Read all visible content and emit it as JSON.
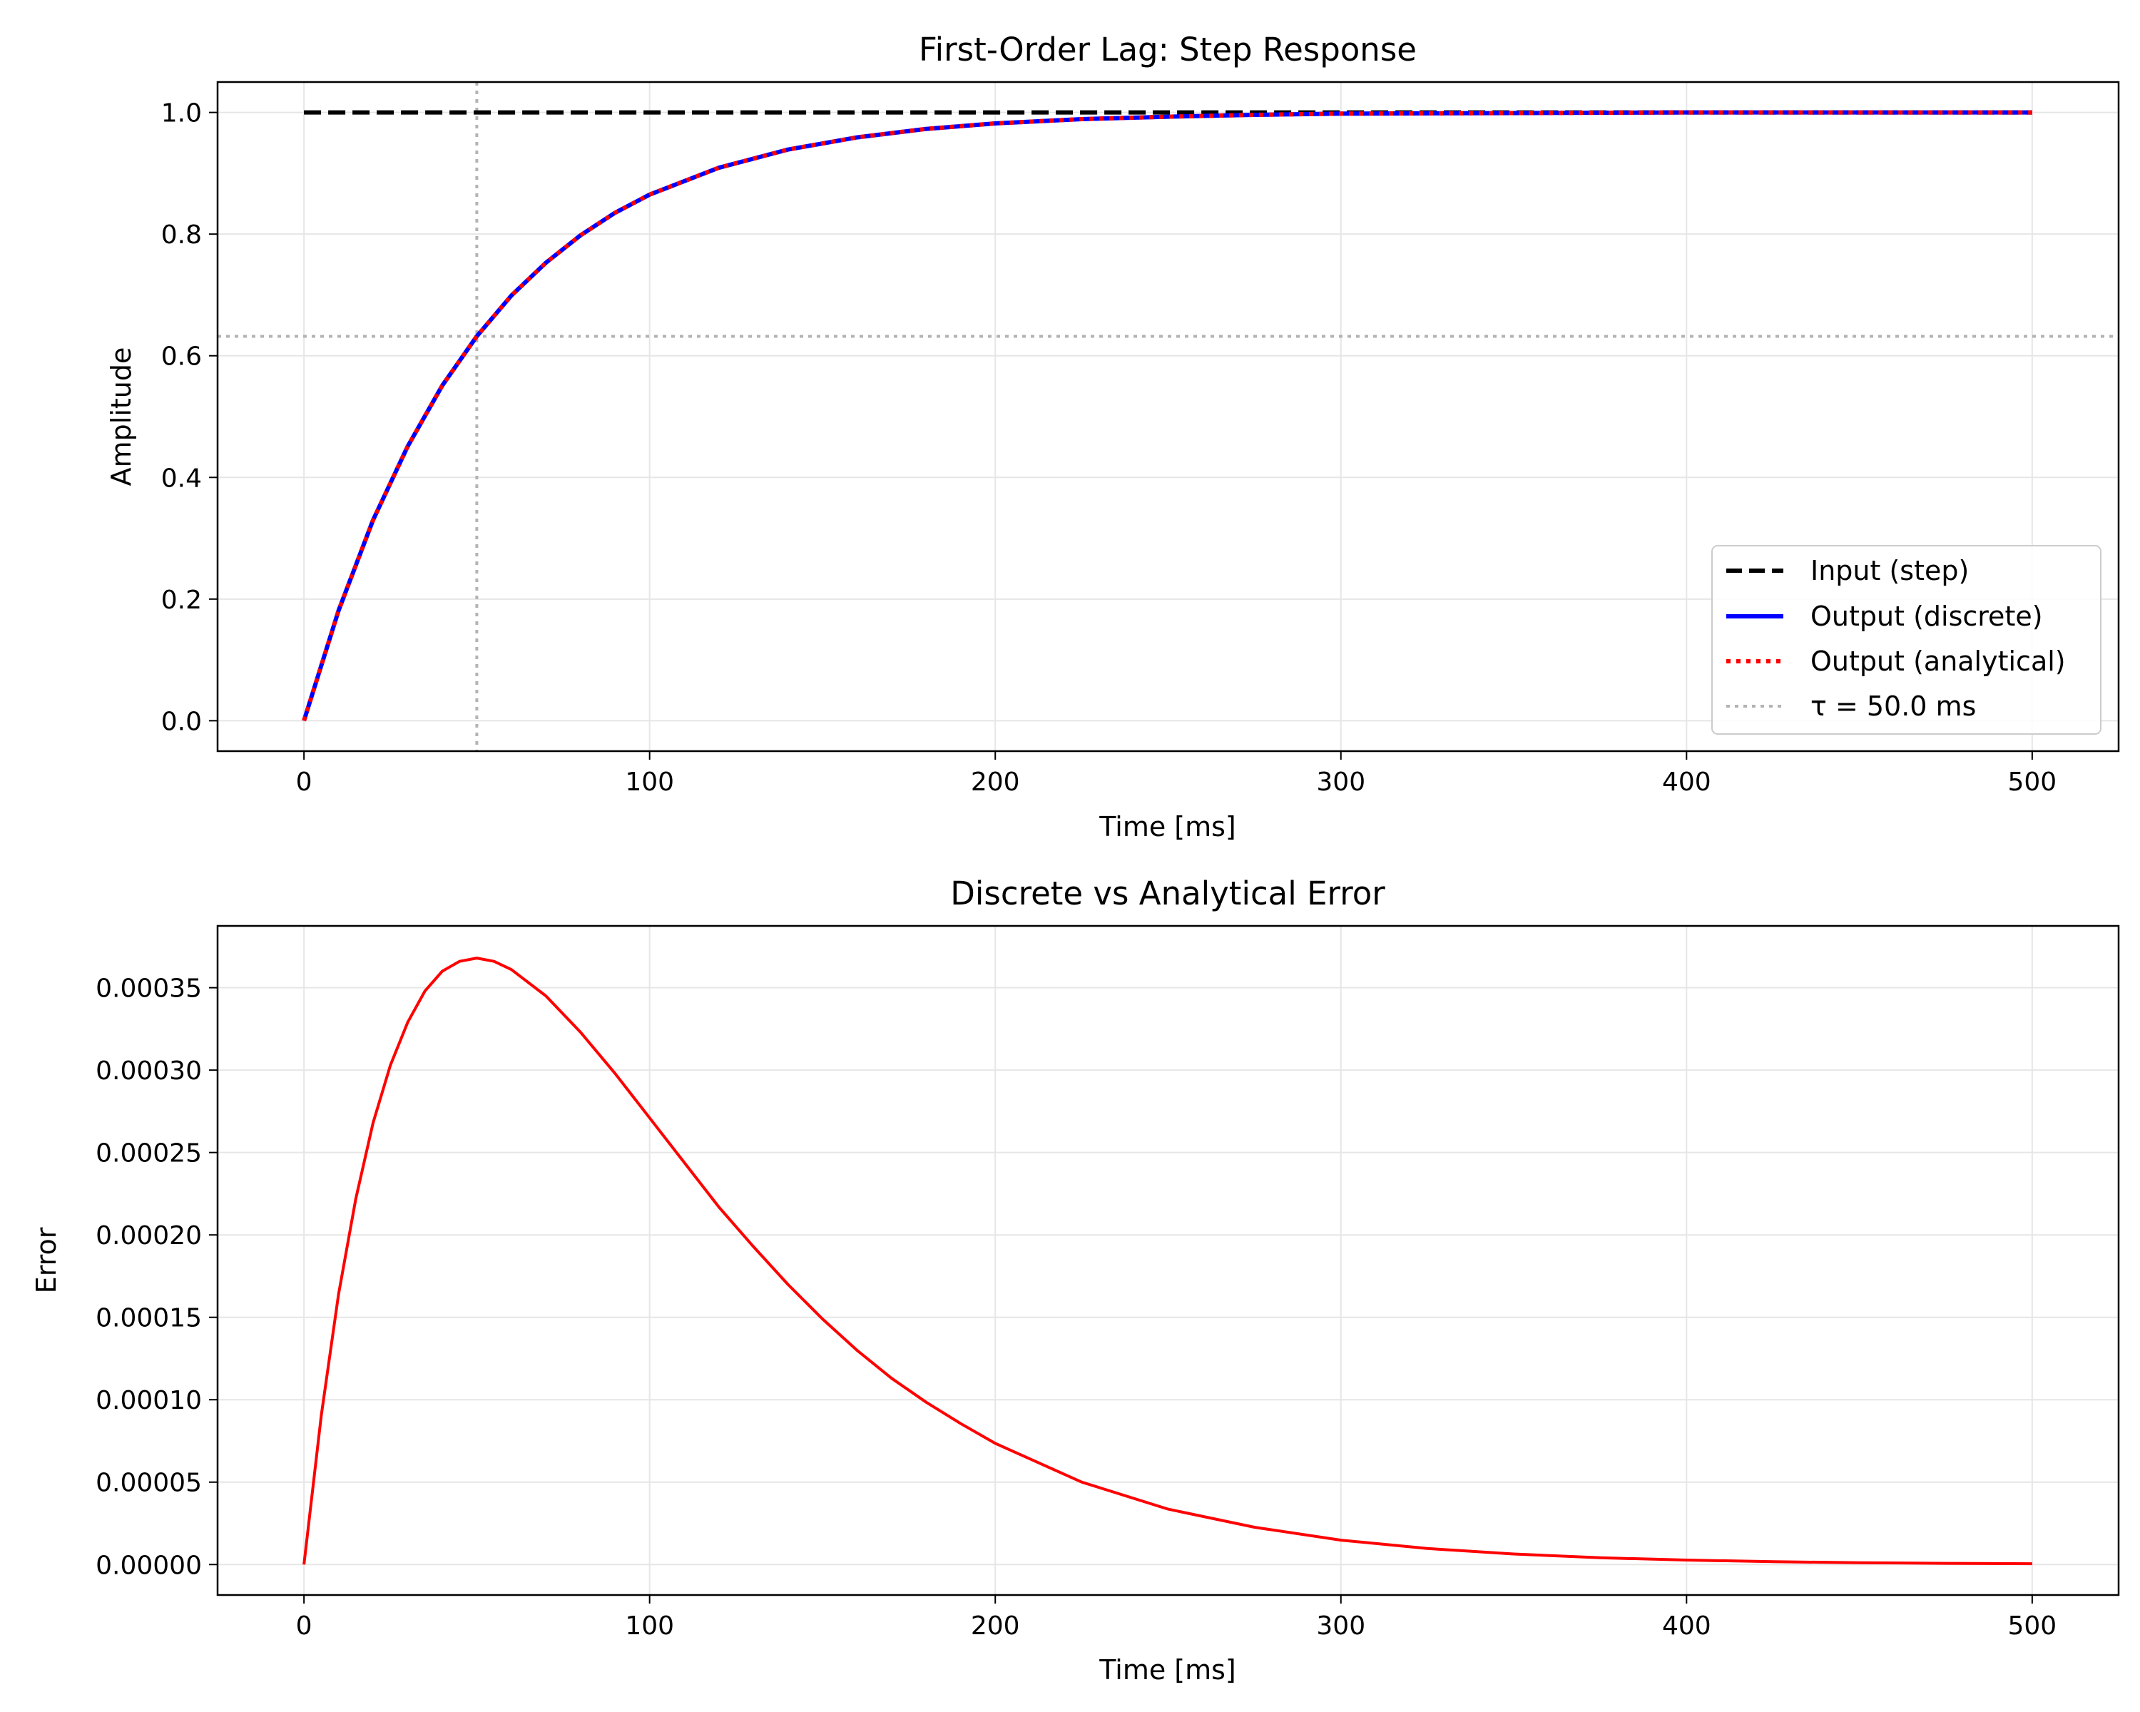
{
  "chart_data": [
    {
      "type": "line",
      "title": "First-Order Lag: Step Response",
      "xlabel": "Time [ms]",
      "ylabel": "Amplitude",
      "xlim": [
        -25,
        525
      ],
      "ylim": [
        -0.05,
        1.05
      ],
      "xticks": [
        0,
        100,
        200,
        300,
        400,
        500
      ],
      "xtick_labels": [
        "0",
        "100",
        "200",
        "300",
        "400",
        "500"
      ],
      "yticks": [
        0.0,
        0.2,
        0.4,
        0.6,
        0.8,
        1.0
      ],
      "ytick_labels": [
        "0.0",
        "0.2",
        "0.4",
        "0.6",
        "0.8",
        "1.0"
      ],
      "grid": true,
      "legend_position": "lower-right",
      "x": [
        0,
        10,
        20,
        30,
        40,
        50,
        60,
        70,
        80,
        90,
        100,
        120,
        140,
        160,
        180,
        200,
        225,
        250,
        275,
        300,
        350,
        400,
        450,
        500
      ],
      "series": [
        {
          "name": "Input (step)",
          "color": "#000000",
          "style": "dashed",
          "values": [
            1,
            1,
            1,
            1,
            1,
            1,
            1,
            1,
            1,
            1,
            1,
            1,
            1,
            1,
            1,
            1,
            1,
            1,
            1,
            1,
            1,
            1,
            1,
            1
          ]
        },
        {
          "name": "Output (discrete)",
          "color": "#0000ff",
          "style": "solid",
          "values": [
            0.0,
            0.181,
            0.33,
            0.451,
            0.551,
            0.632,
            0.699,
            0.753,
            0.798,
            0.835,
            0.865,
            0.909,
            0.939,
            0.959,
            0.973,
            0.982,
            0.989,
            0.993,
            0.996,
            0.998,
            0.999,
            1.0,
            1.0,
            1.0
          ]
        },
        {
          "name": "Output (analytical)",
          "color": "#ff0000",
          "style": "dotted",
          "values": [
            0.0,
            0.181,
            0.33,
            0.451,
            0.551,
            0.632,
            0.699,
            0.753,
            0.798,
            0.835,
            0.865,
            0.909,
            0.939,
            0.959,
            0.973,
            0.982,
            0.989,
            0.993,
            0.996,
            0.998,
            0.999,
            1.0,
            1.0,
            1.0
          ]
        }
      ],
      "reference_lines": {
        "name": "τ = 50.0 ms",
        "color": "#b3b3b3",
        "vertical_x": 50,
        "horizontal_y": 0.632
      }
    },
    {
      "type": "line",
      "title": "Discrete vs Analytical Error",
      "xlabel": "Time [ms]",
      "ylabel": "Error",
      "xlim": [
        -25,
        525
      ],
      "ylim": [
        -1.85e-05,
        0.0003875
      ],
      "xticks": [
        0,
        100,
        200,
        300,
        400,
        500
      ],
      "xtick_labels": [
        "0",
        "100",
        "200",
        "300",
        "400",
        "500"
      ],
      "yticks": [
        0,
        5e-05,
        0.0001,
        0.00015,
        0.0002,
        0.00025,
        0.0003,
        0.00035
      ],
      "ytick_labels": [
        "0.00000",
        "0.00005",
        "0.00010",
        "0.00015",
        "0.00020",
        "0.00025",
        "0.00030",
        "0.00035"
      ],
      "grid": true,
      "x": [
        0,
        5,
        10,
        15,
        20,
        25,
        30,
        35,
        40,
        45,
        50,
        55,
        60,
        70,
        80,
        90,
        100,
        110,
        120,
        130,
        140,
        150,
        160,
        170,
        180,
        190,
        200,
        225,
        250,
        275,
        300,
        325,
        350,
        375,
        400,
        425,
        450,
        475,
        500
      ],
      "series": [
        {
          "name": "",
          "color": "#ff0000",
          "style": "solid",
          "values": [
            0.0,
            9.05e-05,
            0.000164,
            0.000222,
            0.000268,
            0.000303,
            0.000329,
            0.000348,
            0.00036,
            0.000366,
            0.000368,
            0.000366,
            0.000361,
            0.000345,
            0.000323,
            0.000298,
            0.000271,
            0.000244,
            0.000217,
            0.000193,
            0.00017,
            0.000149,
            0.00013,
            0.000113,
            9.85e-05,
            8.55e-05,
            7.35e-05,
            5e-05,
            3.36e-05,
            2.26e-05,
            1.48e-05,
            9.7e-06,
            6.4e-06,
            4.1e-06,
            2.7e-06,
            1.7e-06,
            1.1e-06,
            7e-07,
            5e-07
          ]
        }
      ]
    }
  ]
}
